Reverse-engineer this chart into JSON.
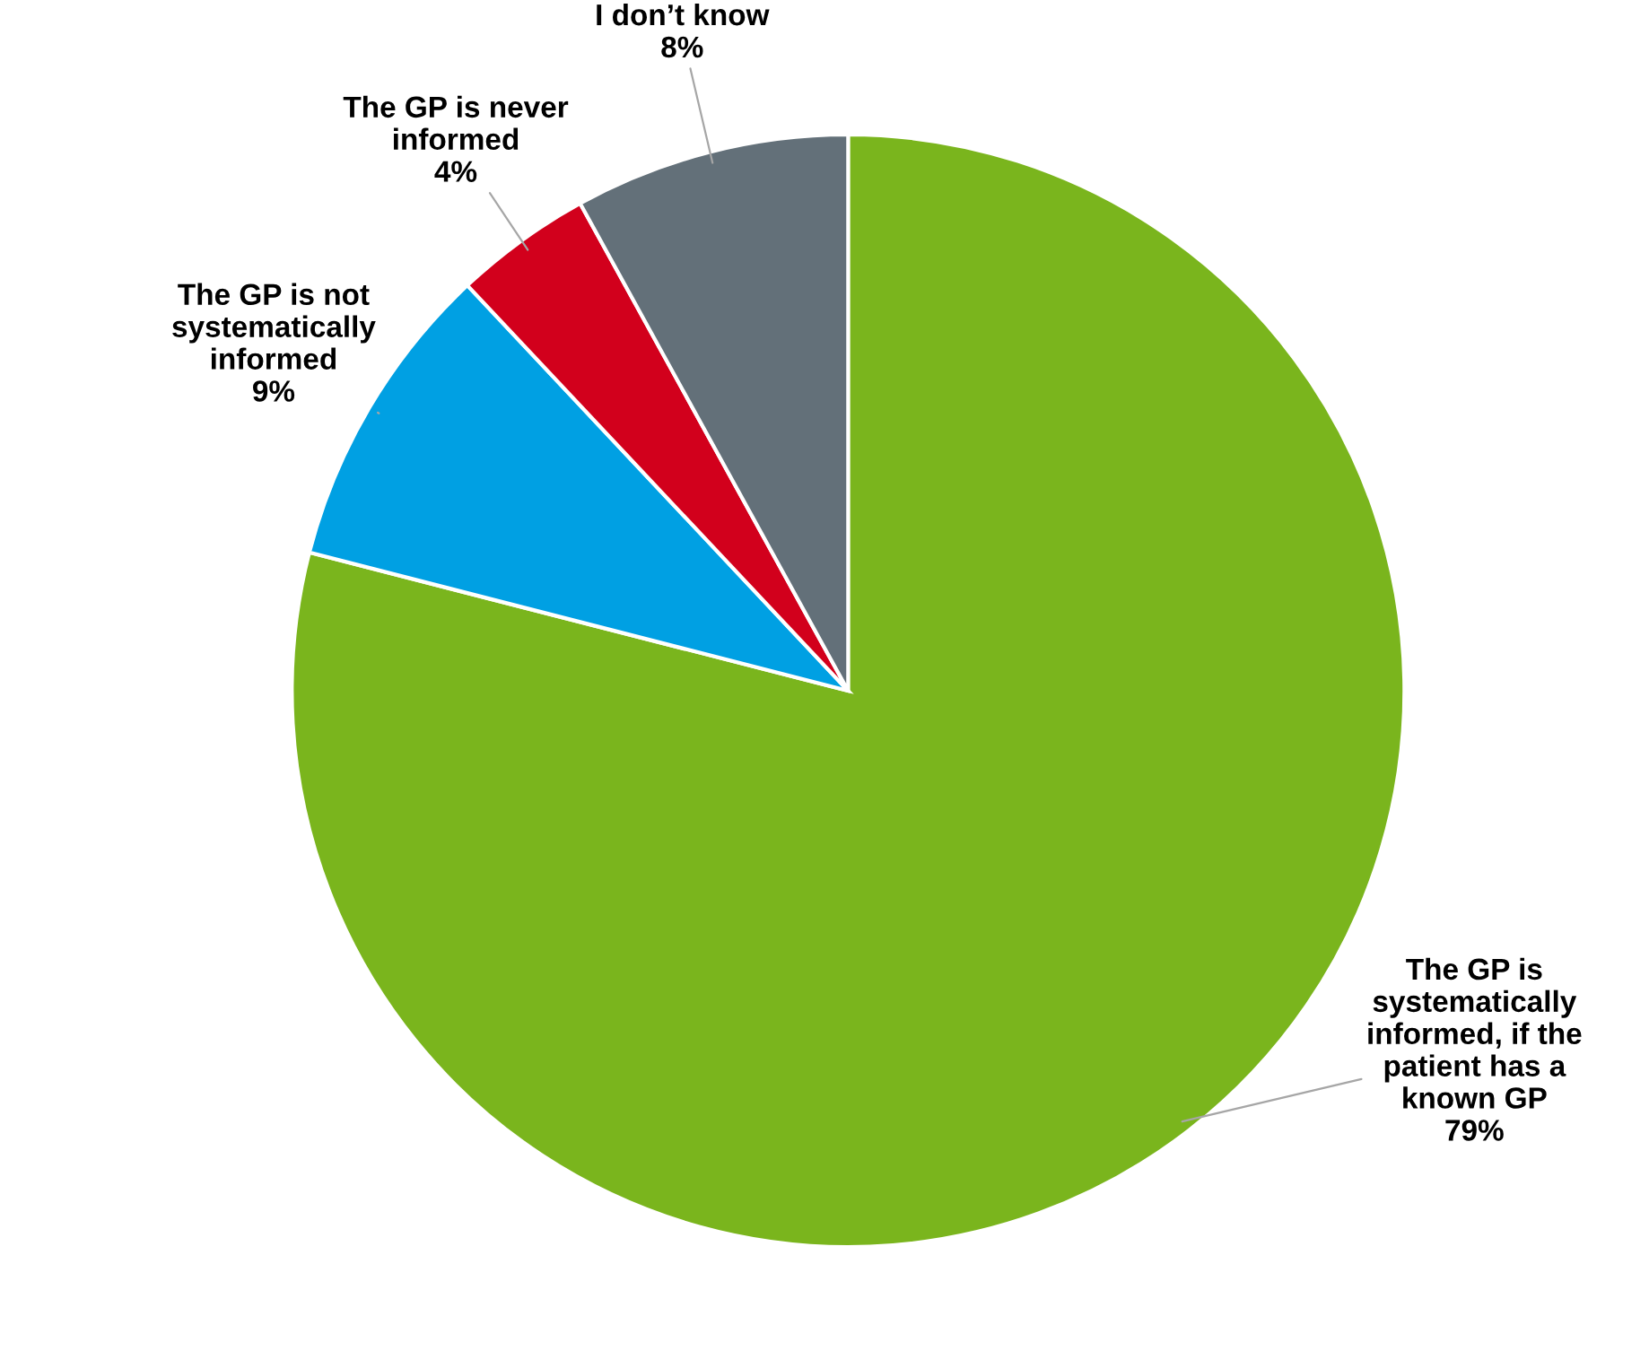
{
  "chart_data": {
    "type": "pie",
    "categories": [
      "The GP is\nsystematically\ninformed, if the\npatient has a\nknown GP",
      "The GP is not\nsystematically\ninformed",
      "The GP is never\ninformed",
      "I don’t know"
    ],
    "values": [
      79,
      9,
      4,
      8
    ],
    "colors": [
      "#7ab51d",
      "#00a0e3",
      "#d2001c",
      "#637079"
    ],
    "value_labels": [
      "79%",
      "9%",
      "4%",
      "8%"
    ]
  }
}
